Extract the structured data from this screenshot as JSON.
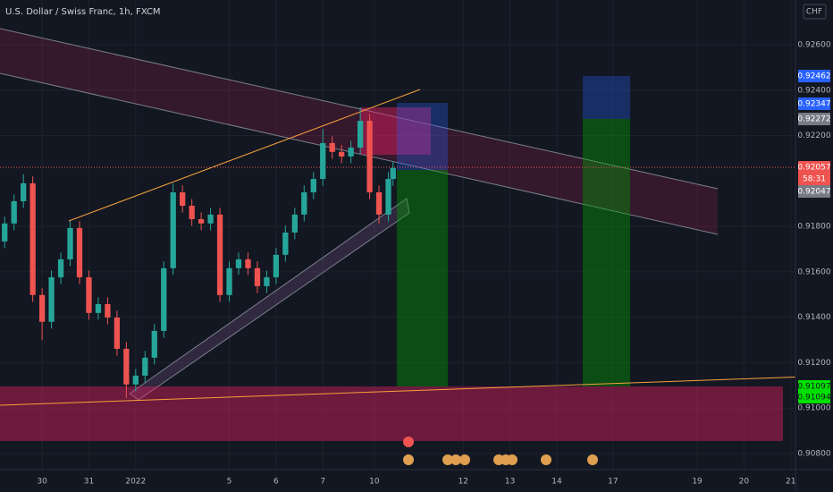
{
  "chart_data": {
    "type": "candlestick",
    "title": "U.S. Dollar / Swiss Franc, 1h, FXCM",
    "currency": "CHF",
    "up_color": "#26a69a",
    "down_color": "#ef5350",
    "grid": true,
    "xlim": [
      -0.9,
      16.1
    ],
    "ylim": [
      0.90729,
      0.92797
    ],
    "xticks": [
      {
        "value": 0,
        "label": "30"
      },
      {
        "value": 1,
        "label": "31"
      },
      {
        "value": 2,
        "label": "2022"
      },
      {
        "value": 4,
        "label": "5"
      },
      {
        "value": 5,
        "label": "6"
      },
      {
        "value": 6,
        "label": "7"
      },
      {
        "value": 7.1,
        "label": "10"
      },
      {
        "value": 9,
        "label": "12"
      },
      {
        "value": 10,
        "label": "13"
      },
      {
        "value": 11,
        "label": "14"
      },
      {
        "value": 12.2,
        "label": "17"
      },
      {
        "value": 14,
        "label": "19"
      },
      {
        "value": 15,
        "label": "20"
      },
      {
        "value": 16,
        "label": "21"
      }
    ],
    "yticks": [
      {
        "value": 0.926,
        "label": "0.92600"
      },
      {
        "value": 0.924,
        "label": "0.92400"
      },
      {
        "value": 0.922,
        "label": "0.92200"
      },
      {
        "value": 0.918,
        "label": "0.91800"
      },
      {
        "value": 0.916,
        "label": "0.91600"
      },
      {
        "value": 0.914,
        "label": "0.91400"
      },
      {
        "value": 0.912,
        "label": "0.91200"
      },
      {
        "value": 0.91,
        "label": "0.91000"
      },
      {
        "value": 0.908,
        "label": "0.90800"
      }
    ],
    "x": [
      -0.8,
      -0.6,
      -0.4,
      -0.2,
      0.0,
      0.2,
      0.4,
      0.6,
      0.8,
      1.0,
      1.2,
      1.4,
      1.6,
      1.8,
      2.0,
      2.2,
      2.4,
      2.6,
      2.8,
      3.0,
      3.2,
      3.4,
      3.6,
      3.8,
      4.0,
      4.2,
      4.4,
      4.6,
      4.8,
      5.0,
      5.2,
      5.4,
      5.6,
      5.8,
      6.0,
      6.2,
      6.4,
      6.6,
      6.8,
      7.0,
      7.2,
      7.4,
      7.5
    ],
    "open": [
      0.91734,
      0.91813,
      0.91911,
      0.9199,
      0.91498,
      0.9138,
      0.91576,
      0.91655,
      0.91793,
      0.91576,
      0.91419,
      0.91458,
      0.91399,
      0.91261,
      0.91104,
      0.91143,
      0.91222,
      0.9134,
      0.91616,
      0.9195,
      0.91891,
      0.91832,
      0.91813,
      0.91852,
      0.91498,
      0.91616,
      0.91655,
      0.91616,
      0.91537,
      0.91576,
      0.91675,
      0.91773,
      0.91852,
      0.9195,
      0.92009,
      0.92167,
      0.92128,
      0.92108,
      0.92147,
      0.92265,
      0.9195,
      0.91852,
      0.92009
    ],
    "high": [
      0.91843,
      0.91941,
      0.9203,
      0.9202,
      0.91528,
      0.91606,
      0.91685,
      0.91823,
      0.91823,
      0.91606,
      0.91488,
      0.91488,
      0.91429,
      0.91291,
      0.91173,
      0.91252,
      0.9137,
      0.91646,
      0.9199,
      0.9198,
      0.91921,
      0.91862,
      0.91882,
      0.91882,
      0.91646,
      0.91685,
      0.91685,
      0.91646,
      0.91606,
      0.91705,
      0.91803,
      0.91882,
      0.9198,
      0.92039,
      0.9223,
      0.92197,
      0.92158,
      0.92177,
      0.92324,
      0.92295,
      0.9198,
      0.92039,
      0.92087
    ],
    "low": [
      0.91704,
      0.91783,
      0.91881,
      0.91468,
      0.913,
      0.9135,
      0.91546,
      0.91625,
      0.91546,
      0.91389,
      0.91389,
      0.91369,
      0.91231,
      0.91044,
      0.91074,
      0.91113,
      0.91192,
      0.9131,
      0.91586,
      0.91861,
      0.91802,
      0.91783,
      0.91783,
      0.91468,
      0.91468,
      0.91586,
      0.91586,
      0.91507,
      0.91507,
      0.91546,
      0.91645,
      0.91743,
      0.91822,
      0.9192,
      0.91979,
      0.92098,
      0.92078,
      0.92078,
      0.92117,
      0.9192,
      0.91812,
      0.91822,
      0.91979
    ],
    "close": [
      0.91813,
      0.91911,
      0.9199,
      0.91498,
      0.9138,
      0.91576,
      0.91655,
      0.91793,
      0.91576,
      0.91419,
      0.91458,
      0.91399,
      0.91261,
      0.91104,
      0.91143,
      0.91222,
      0.9134,
      0.91616,
      0.9195,
      0.91891,
      0.91832,
      0.91813,
      0.91852,
      0.91498,
      0.91616,
      0.91655,
      0.91616,
      0.91537,
      0.91576,
      0.91675,
      0.91773,
      0.91852,
      0.9195,
      0.92009,
      0.92167,
      0.92128,
      0.92108,
      0.92147,
      0.92265,
      0.9195,
      0.91852,
      0.92009,
      0.92057
    ],
    "price_tags": {
      "target2": "0.92462",
      "target1": "0.92347",
      "entry2": "0.92272",
      "last": "0.92057",
      "countdown": "58:31",
      "entry1": "0.92047",
      "stop1": "0.91097",
      "stop2": "0.91094"
    }
  }
}
